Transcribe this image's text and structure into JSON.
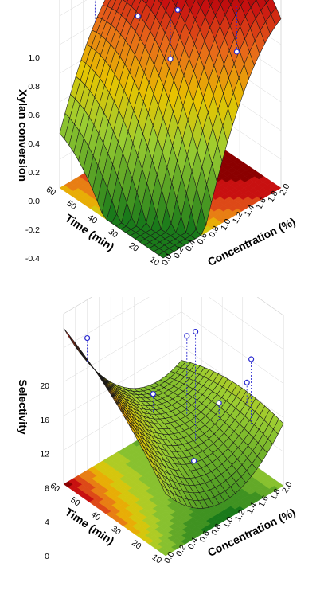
{
  "chart_data": [
    {
      "type": "surface3d",
      "title": "",
      "xlabel": "Concentration (%)",
      "ylabel": "Time (min)",
      "zlabel": "Xylan conversion",
      "x_ticks": [
        "0.0",
        "0.2",
        "0.4",
        "0.6",
        "0.8",
        "1.0",
        "1.2",
        "1.4",
        "1.6",
        "1.8",
        "2.0"
      ],
      "y_ticks": [
        "10",
        "20",
        "30",
        "40",
        "50",
        "60"
      ],
      "z_ticks": [
        "-0.4",
        "-0.2",
        "0.0",
        "0.2",
        "0.4",
        "0.6",
        "0.8",
        "1.0"
      ],
      "xlim": [
        0,
        2
      ],
      "ylim": [
        10,
        60
      ],
      "zlim": [
        -0.4,
        1.0
      ],
      "surface_model": {
        "b0": 0.78,
        "bx": 0.8,
        "by": 0.4,
        "bxx": -0.5,
        "byy": -0.35,
        "bxy": -0.45
      },
      "observed_points": [
        {
          "x": 0.6,
          "y": 60,
          "z": 1.0
        },
        {
          "x": 1.4,
          "y": 60,
          "z": 1.0
        },
        {
          "x": 0.8,
          "y": 45,
          "z": 0.75
        },
        {
          "x": 1.3,
          "y": 40,
          "z": 0.72
        },
        {
          "x": 1.0,
          "y": 35,
          "z": 0.5
        },
        {
          "x": 1.6,
          "y": 20,
          "z": 0.55
        }
      ],
      "colors": {
        "high": "#8b0000",
        "mid": "#e8c400",
        "low": "#1a7a1a"
      }
    },
    {
      "type": "surface3d",
      "title": "",
      "xlabel": "Concentration (%)",
      "ylabel": "Time (min)",
      "zlabel": "Selectivity",
      "x_ticks": [
        "0.0",
        "0.2",
        "0.4",
        "0.6",
        "0.8",
        "1.0",
        "1.2",
        "1.4",
        "1.6",
        "1.8",
        "2.0"
      ],
      "y_ticks": [
        "10",
        "20",
        "30",
        "40",
        "50",
        "60"
      ],
      "z_ticks": [
        "0",
        "4",
        "8",
        "12",
        "16",
        "20"
      ],
      "xlim": [
        0,
        2
      ],
      "ylim": [
        10,
        60
      ],
      "zlim": [
        0,
        20
      ],
      "surface_model": {
        "b0": 6,
        "bx": -3,
        "by": 2.5,
        "bxx": 5,
        "byy": -1.2,
        "bxy": -3
      },
      "observed_points": [
        {
          "x": 0.4,
          "y": 60,
          "z": 15.5
        },
        {
          "x": 1.0,
          "y": 45,
          "z": 9.0
        },
        {
          "x": 1.2,
          "y": 30,
          "z": 18.0
        },
        {
          "x": 1.4,
          "y": 40,
          "z": 15.0
        },
        {
          "x": 1.6,
          "y": 30,
          "z": 8.0
        },
        {
          "x": 1.8,
          "y": 20,
          "z": 14.0
        },
        {
          "x": 1.9,
          "y": 25,
          "z": 10.0
        },
        {
          "x": 1.0,
          "y": 25,
          "z": 4.5
        }
      ],
      "colors": {
        "high": "#8b0000",
        "mid": "#e8c400",
        "low": "#1a7a1a",
        "over": "#9a9a9a"
      }
    }
  ]
}
